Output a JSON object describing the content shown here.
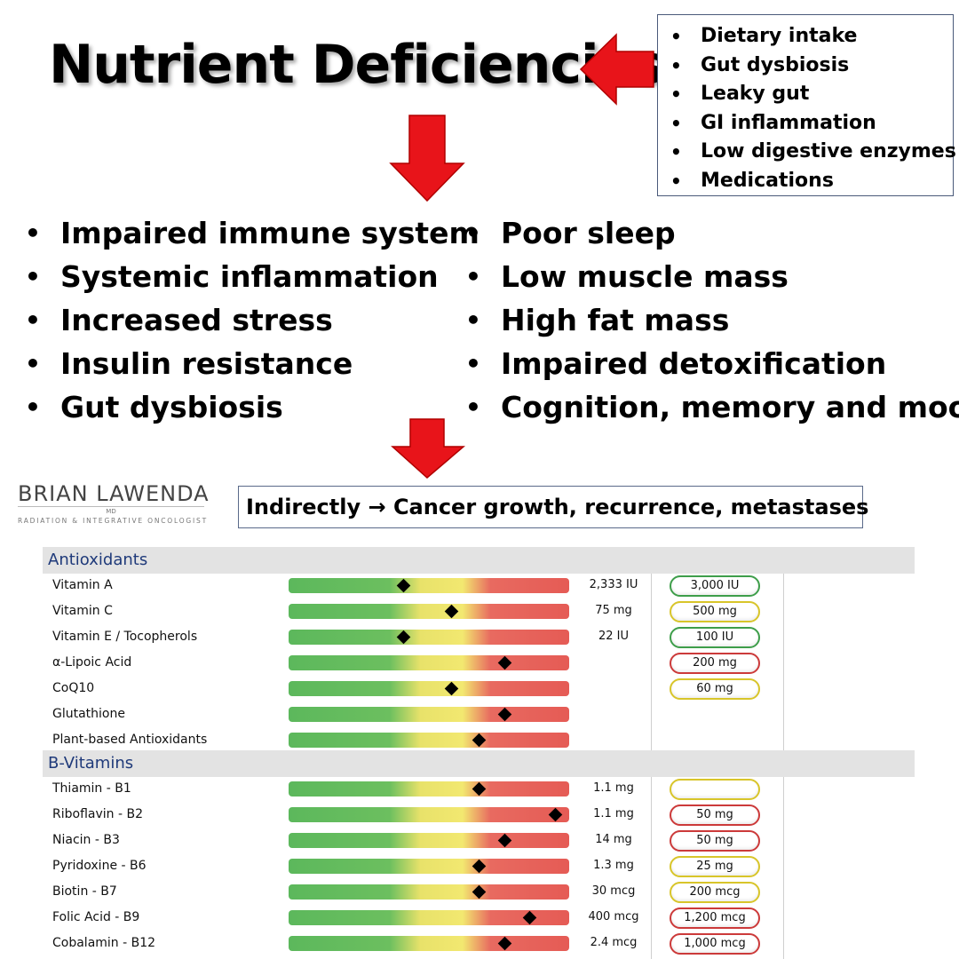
{
  "title": "Nutrient Deficiencies",
  "causes": [
    "Dietary intake",
    "Gut dysbiosis",
    "Leaky gut",
    "GI inflammation",
    "Low digestive enzymes",
    "Medications"
  ],
  "effects_left": [
    "Impaired immune system",
    "Systemic inflammation",
    "Increased stress",
    "Insulin resistance",
    "Gut dysbiosis"
  ],
  "effects_right": [
    "Poor sleep",
    "Low muscle mass",
    "High fat mass",
    "Impaired detoxification",
    "Cognition, memory and mood"
  ],
  "logo": {
    "name": "BRIAN LAWENDA",
    "credential": "MD",
    "subtitle": "RADIATION & INTEGRATIVE ONCOLOGIST"
  },
  "indirect": {
    "prefix": "Indirectly",
    "arrow": "→",
    "text": "Cancer growth, recurrence, metastases"
  },
  "colors": {
    "arrow": "#e8141a",
    "green": "#5cb85c",
    "yellow": "#f2e870",
    "red": "#e55b55",
    "header_text": "#1f3a7a"
  },
  "report": {
    "sections": [
      {
        "name": "Antioxidants",
        "rows": [
          {
            "label": "Vitamin A",
            "level": 0.41,
            "amount": "2,333 IU",
            "recommended": "3,000 IU",
            "status": "green"
          },
          {
            "label": "Vitamin C",
            "level": 0.58,
            "amount": "75 mg",
            "recommended": "500 mg",
            "status": "yellow"
          },
          {
            "label": "Vitamin E / Tocopherols",
            "level": 0.41,
            "amount": "22 IU",
            "recommended": "100 IU",
            "status": "green"
          },
          {
            "label": "α-Lipoic Acid",
            "level": 0.77,
            "amount": "",
            "recommended": "200 mg",
            "status": "red"
          },
          {
            "label": "CoQ10",
            "level": 0.58,
            "amount": "",
            "recommended": "60 mg",
            "status": "yellow"
          },
          {
            "label": "Glutathione",
            "level": 0.77,
            "amount": "",
            "recommended": "",
            "status": ""
          },
          {
            "label": "Plant-based Antioxidants",
            "level": 0.68,
            "amount": "",
            "recommended": "",
            "status": ""
          }
        ]
      },
      {
        "name": "B-Vitamins",
        "rows": [
          {
            "label": "Thiamin - B1",
            "level": 0.68,
            "amount": "1.1 mg",
            "recommended": "",
            "status": "yellow"
          },
          {
            "label": "Riboflavin - B2",
            "level": 0.95,
            "amount": "1.1 mg",
            "recommended": "50 mg",
            "status": "red"
          },
          {
            "label": "Niacin - B3",
            "level": 0.77,
            "amount": "14 mg",
            "recommended": "50 mg",
            "status": "red"
          },
          {
            "label": "Pyridoxine - B6",
            "level": 0.68,
            "amount": "1.3 mg",
            "recommended": "25 mg",
            "status": "yellow"
          },
          {
            "label": "Biotin - B7",
            "level": 0.68,
            "amount": "30 mcg",
            "recommended": "200 mcg",
            "status": "yellow"
          },
          {
            "label": "Folic Acid - B9",
            "level": 0.86,
            "amount": "400 mcg",
            "recommended": "1,200 mcg",
            "status": "red"
          },
          {
            "label": "Cobalamin - B12",
            "level": 0.77,
            "amount": "2.4 mcg",
            "recommended": "1,000 mcg",
            "status": "red"
          }
        ]
      }
    ]
  }
}
